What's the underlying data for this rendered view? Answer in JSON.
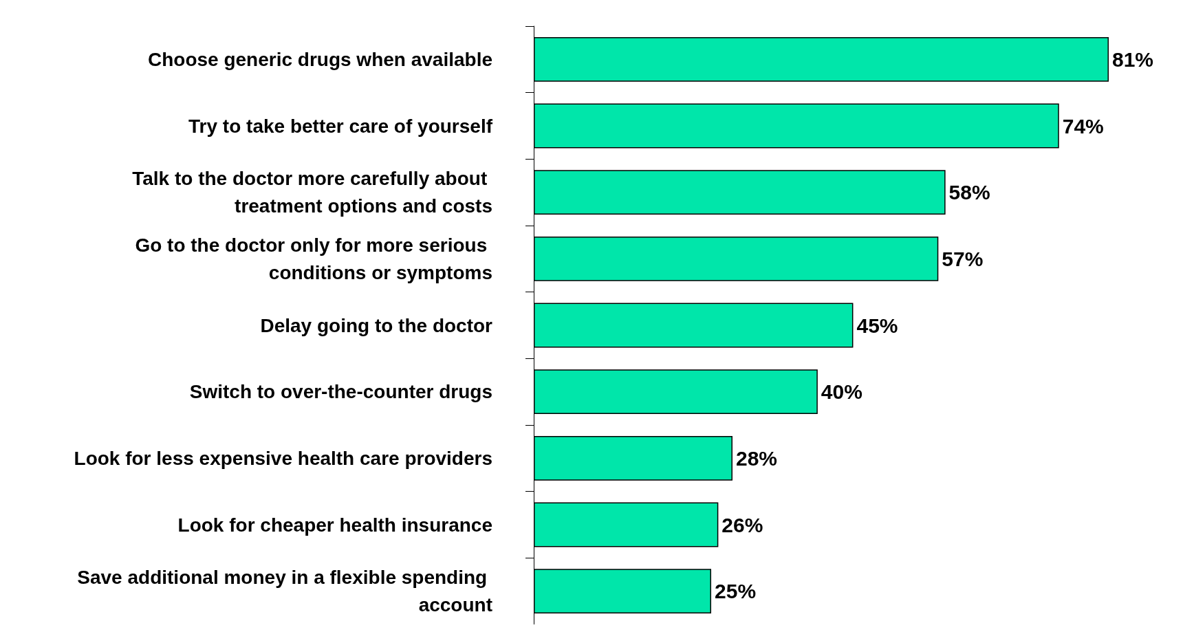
{
  "chart_data": {
    "type": "bar",
    "orientation": "horizontal",
    "categories": [
      "Choose generic drugs when available",
      "Try to take better care of yourself",
      "Talk to the doctor more carefully about treatment options and costs",
      "Go to the doctor only for more serious conditions or symptoms",
      "Delay going to the doctor",
      "Switch to over-the-counter drugs",
      "Look for less expensive health care providers",
      "Look for cheaper health insurance",
      "Save additional money in a flexible spending account"
    ],
    "values": [
      81,
      74,
      58,
      57,
      45,
      40,
      28,
      26,
      25
    ],
    "value_labels": [
      "81%",
      "74%",
      "58%",
      "57%",
      "45%",
      "40%",
      "28%",
      "26%",
      "25%"
    ],
    "color": "#00e6aa"
  }
}
